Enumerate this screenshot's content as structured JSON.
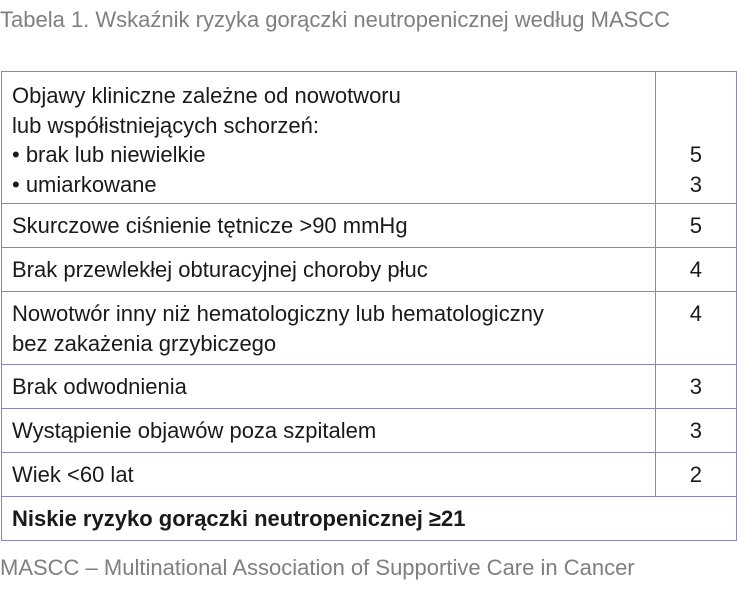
{
  "caption": "Tabela 1. Wskaźnik ryzyka gorączki neutropenicznej według MASCC",
  "first_row": {
    "heading_line1": "Objawy kliniczne zależne od nowotworu",
    "heading_line2": "lub współistniejących schorzeń:",
    "options": [
      {
        "label": "• brak lub niewielkie",
        "score": "5"
      },
      {
        "label": "• umiarkowane",
        "score": "3"
      }
    ]
  },
  "rows": [
    {
      "label": "Skurczowe ciśnienie tętnicze >90 mmHg",
      "score": "5"
    },
    {
      "label": "Brak przewlekłej obturacyjnej choroby płuc",
      "score": "4"
    },
    {
      "label_line1": "Nowotwór inny niż hematologiczny lub hematologiczny",
      "label_line2": "bez zakażenia grzybiczego",
      "score": "4"
    },
    {
      "label": "Brak odwodnienia",
      "score": "3"
    },
    {
      "label": "Wystąpienie objawów poza szpitalem",
      "score": "3"
    },
    {
      "label": "Wiek <60 lat",
      "score": "2"
    }
  ],
  "total": "Niskie ryzyko gorączki neutropenicznej ≥21",
  "footnote": "MASCC – Multinational Association of Supportive Care in Cancer",
  "colors": {
    "border": "#8a86b8",
    "caption_text": "#7f7f7f",
    "body_text": "#1a1a1a"
  }
}
